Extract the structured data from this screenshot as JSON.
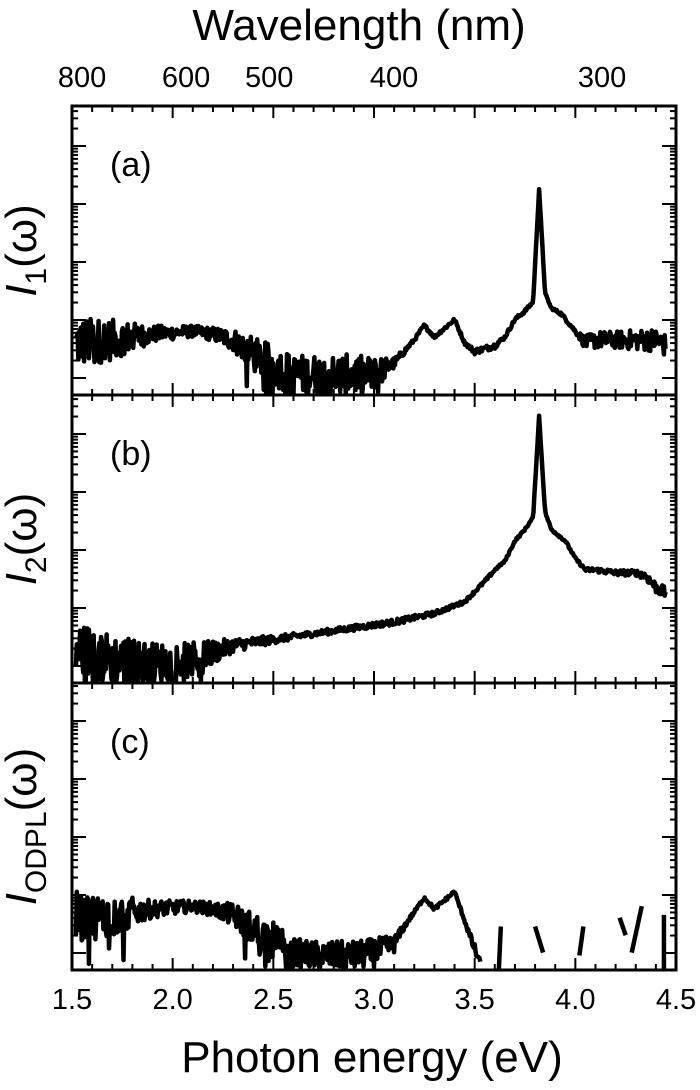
{
  "figure": {
    "top_axis_title": "Wavelength (nm)",
    "bottom_axis_title": "Photon energy (eV)"
  },
  "chart_data": {
    "type": "line",
    "layout": "3 vertically stacked panels sharing x axis; log-scale y axes without numeric labels; top secondary x axis in wavelength",
    "x_axis": {
      "label": "Photon energy (eV)",
      "range": [
        1.5,
        4.5
      ],
      "ticks": [
        1.5,
        2.0,
        2.5,
        3.0,
        3.5,
        4.0,
        4.5
      ],
      "tick_labels": [
        "1.5",
        "2.0",
        "2.5",
        "3.0",
        "3.5",
        "4.0",
        "4.5"
      ]
    },
    "top_axis": {
      "label": "Wavelength (nm)",
      "ticks_nm": [
        800,
        600,
        500,
        400,
        300
      ],
      "tick_labels": [
        "800",
        "600",
        "500",
        "400",
        "300"
      ]
    },
    "grid": false,
    "legend": "none",
    "panels": [
      {
        "id": "a",
        "panel_label": "(a)",
        "ylabel_main": "I",
        "ylabel_sub": "1",
        "ylabel_tail": "(ω)",
        "yscale": "log",
        "y_units": "decades above panel bottom",
        "ylim_decades": [
          0,
          5
        ],
        "series": [
          {
            "name": "I1(ω)",
            "x": [
              1.52,
              1.7,
              1.9,
              2.1,
              2.2,
              2.3,
              2.4,
              2.5,
              2.6,
              2.7,
              2.8,
              2.9,
              3.0,
              3.1,
              3.15,
              3.2,
              3.25,
              3.3,
              3.35,
              3.4,
              3.45,
              3.5,
              3.6,
              3.65,
              3.7,
              3.75,
              3.79,
              3.82,
              3.85,
              3.88,
              3.93,
              4.0,
              4.05,
              4.1,
              4.2,
              4.3,
              4.4,
              4.45
            ],
            "y": [
              0.9,
              0.95,
              1.05,
              1.1,
              1.05,
              0.95,
              0.7,
              0.5,
              0.35,
              0.35,
              0.35,
              0.35,
              0.35,
              0.55,
              0.75,
              0.95,
              1.2,
              1.0,
              1.15,
              1.3,
              0.9,
              0.75,
              0.85,
              1.0,
              1.3,
              1.45,
              1.6,
              3.55,
              1.75,
              1.5,
              1.4,
              1.1,
              0.9,
              0.95,
              0.95,
              0.95,
              0.95,
              0.85
            ],
            "noise": [
              0.45,
              0.35,
              0.15,
              0.1,
              0.12,
              0.2,
              0.3,
              0.35,
              0.35,
              0.35,
              0.35,
              0.35,
              0.3,
              0.1,
              0.05,
              0.03,
              0.03,
              0.03,
              0.03,
              0.03,
              0.03,
              0.05,
              0.05,
              0.03,
              0.03,
              0.03,
              0.02,
              0.02,
              0.02,
              0.02,
              0.03,
              0.03,
              0.12,
              0.15,
              0.15,
              0.18,
              0.2,
              0.2
            ]
          }
        ],
        "annotations": [
          "sharp peak at ~3.82 eV (~325 nm)",
          "double peak at ~3.25 eV and ~3.40 eV"
        ]
      },
      {
        "id": "b",
        "panel_label": "(b)",
        "ylabel_main": "I",
        "ylabel_sub": "2",
        "ylabel_tail": "(ω)",
        "yscale": "log",
        "y_units": "decades above panel bottom",
        "ylim_decades": [
          0,
          5
        ],
        "series": [
          {
            "name": "I2(ω)",
            "x": [
              1.52,
              1.7,
              1.9,
              2.1,
              2.3,
              2.5,
              2.7,
              2.9,
              3.1,
              3.3,
              3.45,
              3.55,
              3.6,
              3.65,
              3.7,
              3.75,
              3.79,
              3.82,
              3.85,
              3.88,
              3.95,
              4.0,
              4.05,
              4.1,
              4.2,
              4.3,
              4.35,
              4.4,
              4.45
            ],
            "y": [
              0.6,
              0.4,
              0.35,
              0.4,
              0.65,
              0.75,
              0.85,
              0.95,
              1.05,
              1.2,
              1.4,
              1.75,
              1.95,
              2.1,
              2.45,
              2.65,
              2.85,
              4.6,
              2.95,
              2.65,
              2.45,
              2.15,
              1.95,
              1.95,
              1.9,
              1.9,
              1.85,
              1.65,
              1.55
            ],
            "noise": [
              0.5,
              0.45,
              0.35,
              0.3,
              0.12,
              0.07,
              0.05,
              0.05,
              0.05,
              0.04,
              0.03,
              0.03,
              0.02,
              0.02,
              0.02,
              0.02,
              0.02,
              0.02,
              0.02,
              0.02,
              0.02,
              0.02,
              0.03,
              0.04,
              0.05,
              0.05,
              0.08,
              0.1,
              0.1
            ]
          }
        ],
        "annotations": [
          "sharp peak at ~3.82 eV",
          "monotonic rise from ~2.3 eV toward the peak"
        ]
      },
      {
        "id": "c",
        "panel_label": "(c)",
        "ylabel_main": "I",
        "ylabel_sub": "ODPL",
        "ylabel_tail": "(ω)",
        "yscale": "log",
        "y_units": "decades above panel bottom",
        "ylim_decades": [
          0,
          5
        ],
        "series": [
          {
            "name": "I_ODPL(ω)",
            "x": [
              1.52,
              1.7,
              1.9,
              2.1,
              2.2,
              2.3,
              2.4,
              2.5,
              2.6,
              2.7,
              2.8,
              2.9,
              3.0,
              3.1,
              3.15,
              3.2,
              3.25,
              3.3,
              3.35,
              3.4,
              3.45,
              3.5,
              3.53
            ],
            "y": [
              0.9,
              0.95,
              1.05,
              1.1,
              1.05,
              0.95,
              0.7,
              0.5,
              0.3,
              0.25,
              0.25,
              0.25,
              0.3,
              0.45,
              0.75,
              1.0,
              1.25,
              1.05,
              1.2,
              1.35,
              0.85,
              0.35,
              0.1
            ],
            "noise": [
              0.45,
              0.35,
              0.15,
              0.1,
              0.12,
              0.2,
              0.3,
              0.35,
              0.25,
              0.25,
              0.25,
              0.25,
              0.25,
              0.15,
              0.05,
              0.03,
              0.03,
              0.03,
              0.03,
              0.03,
              0.03,
              0.1,
              0.05
            ]
          }
        ],
        "fragments": [
          {
            "x": [
              3.62,
              3.63
            ],
            "y": [
              0.0,
              0.75
            ]
          },
          {
            "x": [
              3.8,
              3.84
            ],
            "y": [
              0.75,
              0.3
            ]
          },
          {
            "x": [
              4.02,
              4.04
            ],
            "y": [
              0.25,
              0.75
            ]
          },
          {
            "x": [
              4.22,
              4.25
            ],
            "y": [
              0.9,
              0.6
            ]
          },
          {
            "x": [
              4.28,
              4.33
            ],
            "y": [
              0.3,
              1.1
            ]
          },
          {
            "x": [
              4.44,
              4.44
            ],
            "y": [
              0.0,
              0.95
            ]
          }
        ],
        "annotations": [
          "broad band ~1.6–2.4 eV",
          "double peak at ~3.25 and ~3.40 eV",
          "signal cut off above ~3.55 eV (fragments only)"
        ]
      }
    ]
  }
}
